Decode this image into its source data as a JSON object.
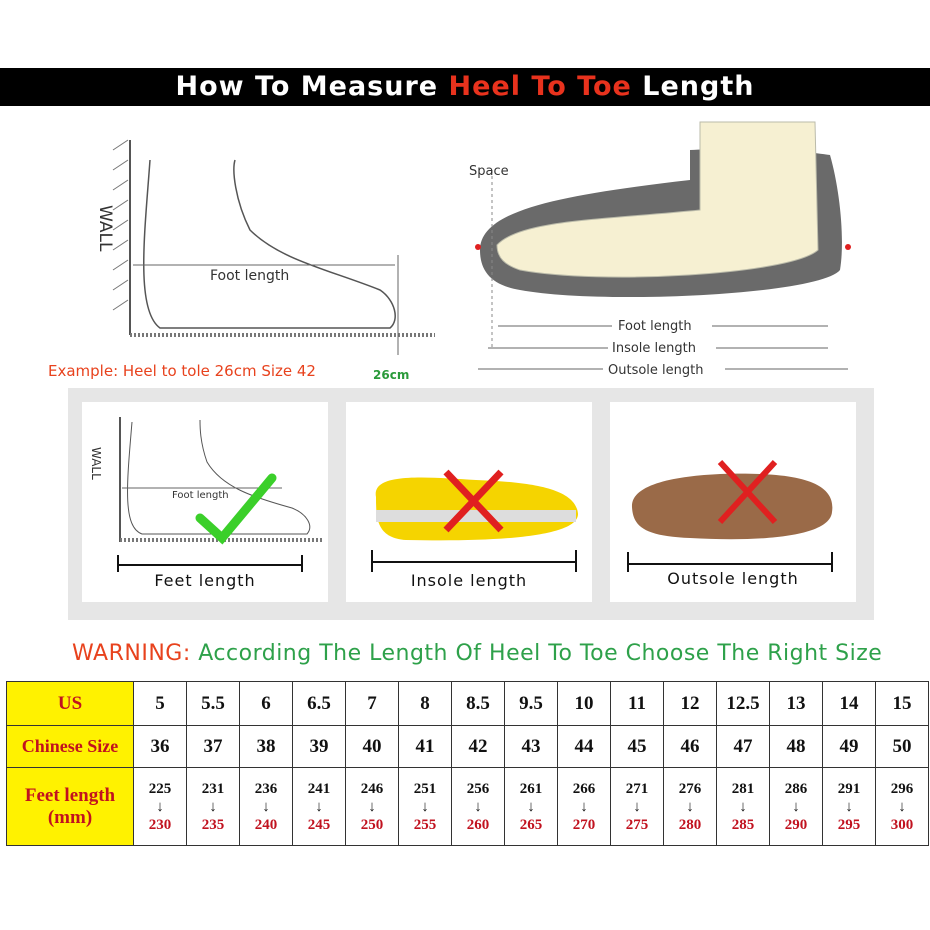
{
  "banner": {
    "part1": "How To Measure ",
    "highlight": "Heel To Toe",
    "part2": " Length"
  },
  "left_diagram": {
    "wall": "WALL",
    "foot_length": "Foot length",
    "example": "Example: Heel to tole 26cm Size 42",
    "cm": "26cm"
  },
  "right_diagram": {
    "space": "Space",
    "foot_length": "Foot length",
    "insole_length": "Insole length",
    "outsole_length": "Outsole length"
  },
  "cards": [
    {
      "wall": "WALL",
      "inner": "Foot length",
      "caption": "Feet length",
      "mark": "check-icon",
      "mark_color": "#3bcf2a"
    },
    {
      "caption": "Insole length",
      "mark": "cross-icon",
      "mark_color": "#e02020"
    },
    {
      "caption": "Outsole length",
      "mark": "cross-icon",
      "mark_color": "#e02020"
    }
  ],
  "warning": {
    "label": "WARNING:",
    "text": "According The Length Of Heel To Toe Choose The Right Size"
  },
  "table": {
    "headers": {
      "us": "US",
      "cn": "Chinese Size",
      "feet": "Feet length",
      "unit": "(mm)"
    },
    "us": [
      "5",
      "5.5",
      "6",
      "6.5",
      "7",
      "8",
      "8.5",
      "9.5",
      "10",
      "11",
      "12",
      "12.5",
      "13",
      "14",
      "15"
    ],
    "cn": [
      "36",
      "37",
      "38",
      "39",
      "40",
      "41",
      "42",
      "43",
      "44",
      "45",
      "46",
      "47",
      "48",
      "49",
      "50"
    ],
    "from": [
      "225",
      "231",
      "236",
      "241",
      "246",
      "251",
      "256",
      "261",
      "266",
      "271",
      "276",
      "281",
      "286",
      "291",
      "296"
    ],
    "to": [
      "230",
      "235",
      "240",
      "245",
      "250",
      "255",
      "260",
      "265",
      "270",
      "275",
      "280",
      "285",
      "290",
      "295",
      "300"
    ],
    "arrow": "↓"
  }
}
